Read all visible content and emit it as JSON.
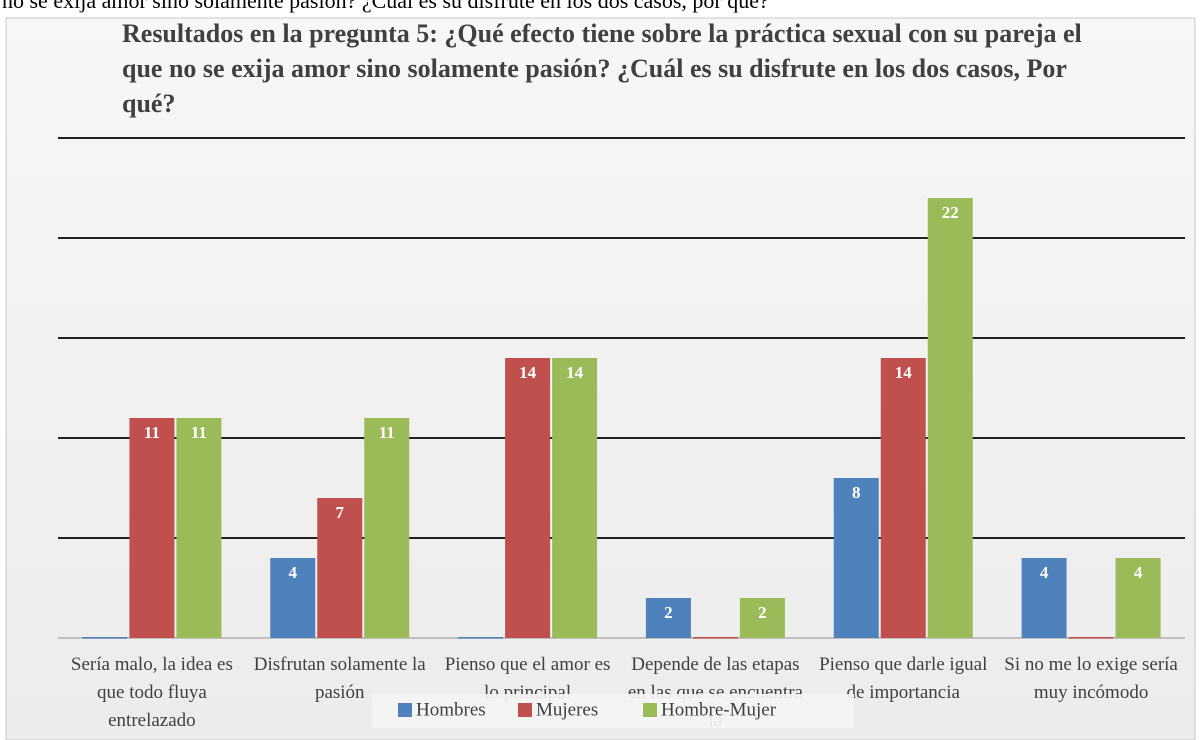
{
  "caption": "no se exija amor sino solamente pasión? ¿Cuál es su disfrute en los dos casos, por qué?",
  "chart_data": {
    "type": "bar",
    "title": "Resultados en la pregunta 5: ¿Qué efecto tiene sobre la práctica sexual con su pareja el que no se exija amor sino solamente pasión? ¿Cuál es su disfrute en los dos casos, Por qué?",
    "categories": [
      "Sería malo, la idea es que todo fluya entrelazado",
      "Disfrutan solamente la pasión",
      "Pienso que el amor es lo principal",
      "Depende de las etapas en las que se encuentra la",
      "Pienso que darle igual de importancia",
      "Si no me lo exige sería muy incómodo"
    ],
    "series": [
      {
        "name": "Hombres",
        "color": "#4f81bd",
        "values": [
          0,
          4,
          0,
          2,
          8,
          4
        ]
      },
      {
        "name": "Mujeres",
        "color": "#c0504d",
        "values": [
          11,
          7,
          14,
          0,
          14,
          0
        ]
      },
      {
        "name": "Hombre-Mujer",
        "color": "#9bbb59",
        "values": [
          11,
          11,
          14,
          2,
          22,
          4
        ]
      }
    ],
    "ylim": [
      0,
      25
    ],
    "yticks": [
      0,
      5,
      10,
      15,
      20,
      25
    ],
    "grid": true,
    "legend": "bottom"
  }
}
